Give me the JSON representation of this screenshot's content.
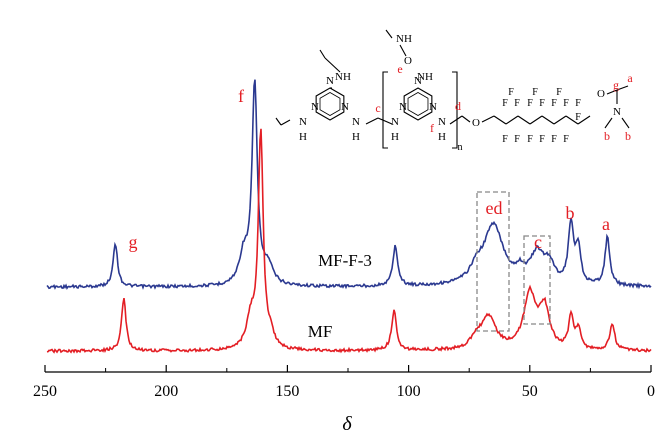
{
  "chart_data": {
    "type": "line",
    "xlabel": "δ",
    "xlim": [
      250,
      0
    ],
    "x_reversed": true,
    "xticks": [
      250,
      200,
      150,
      100,
      50,
      0
    ],
    "grid": false,
    "series": [
      {
        "name": "MF-F-3",
        "color": "#2b3990",
        "peaks": [
          {
            "x": 221,
            "label": "g"
          },
          {
            "x": 163.5,
            "label": "f"
          },
          {
            "x": 105.5,
            "label": ""
          },
          {
            "x": 65,
            "label": "ed"
          },
          {
            "x": 47,
            "label": "c"
          },
          {
            "x": 33,
            "label": "b"
          },
          {
            "x": 18,
            "label": "a"
          }
        ]
      },
      {
        "name": "MF",
        "color": "#e31e24",
        "peaks": [
          {
            "x": 217.5,
            "label": ""
          },
          {
            "x": 161,
            "label": ""
          },
          {
            "x": 106,
            "label": ""
          },
          {
            "x": 67,
            "label": ""
          },
          {
            "x": 50,
            "label": ""
          },
          {
            "x": 32,
            "label": ""
          },
          {
            "x": 16,
            "label": ""
          }
        ]
      }
    ],
    "annotations": {
      "peak_labels": [
        "g",
        "f",
        "ed",
        "c",
        "b",
        "a"
      ],
      "highlight_boxes": [
        "ed",
        "c"
      ]
    },
    "structure_labels": {
      "atoms": [
        "NH",
        "O",
        "N",
        "H",
        "F",
        "n"
      ],
      "carbon_labels": [
        "a",
        "b",
        "c",
        "d",
        "e",
        "f",
        "g"
      ]
    }
  }
}
